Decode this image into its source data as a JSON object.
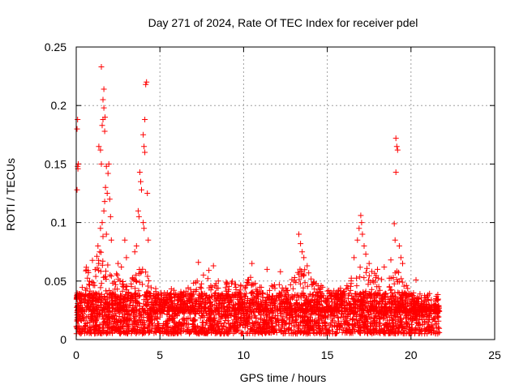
{
  "chart_data": {
    "type": "scatter",
    "title": "Day 271 of 2024, Rate Of TEC Index for receiver pdel",
    "xlabel": "GPS time / hours",
    "ylabel": "ROTI / TECUs",
    "xlim": [
      0,
      25
    ],
    "ylim": [
      0,
      0.25
    ],
    "xticks": [
      0,
      5,
      10,
      15,
      20,
      25
    ],
    "yticks": [
      0,
      0.05,
      0.1,
      0.15,
      0.2,
      0.25
    ],
    "xtick_labels": [
      "0",
      "5",
      "10",
      "15",
      "20",
      "25"
    ],
    "ytick_labels": [
      "0",
      "0.05",
      "0.1",
      "0.15",
      "0.2",
      "0.25"
    ],
    "grid": true,
    "marker": "+",
    "series": [
      {
        "color": "#ff0000",
        "points": [
          [
            0.05,
            0.128
          ],
          [
            0.08,
            0.148
          ],
          [
            0.1,
            0.146
          ],
          [
            0.12,
            0.15
          ],
          [
            0.05,
            0.18
          ],
          [
            0.08,
            0.188
          ],
          [
            1.35,
            0.165
          ],
          [
            1.45,
            0.162
          ],
          [
            1.5,
            0.233
          ],
          [
            1.6,
            0.205
          ],
          [
            1.65,
            0.198
          ],
          [
            1.65,
            0.214
          ],
          [
            1.6,
            0.188
          ],
          [
            1.55,
            0.183
          ],
          [
            1.7,
            0.178
          ],
          [
            1.72,
            0.19
          ],
          [
            1.5,
            0.15
          ],
          [
            1.8,
            0.148
          ],
          [
            1.9,
            0.142
          ],
          [
            1.95,
            0.15
          ],
          [
            1.75,
            0.13
          ],
          [
            1.85,
            0.125
          ],
          [
            1.7,
            0.118
          ],
          [
            1.65,
            0.11
          ],
          [
            2.0,
            0.12
          ],
          [
            2.05,
            0.105
          ],
          [
            1.45,
            0.095
          ],
          [
            1.55,
            0.1
          ],
          [
            1.6,
            0.088
          ],
          [
            1.8,
            0.09
          ],
          [
            1.3,
            0.08
          ],
          [
            1.4,
            0.075
          ],
          [
            2.1,
            0.085
          ],
          [
            3.8,
            0.143
          ],
          [
            3.85,
            0.135
          ],
          [
            3.9,
            0.128
          ],
          [
            4.0,
            0.175
          ],
          [
            4.05,
            0.165
          ],
          [
            4.1,
            0.16
          ],
          [
            4.1,
            0.188
          ],
          [
            4.15,
            0.218
          ],
          [
            4.2,
            0.22
          ],
          [
            4.25,
            0.125
          ],
          [
            3.7,
            0.11
          ],
          [
            3.75,
            0.105
          ],
          [
            4.0,
            0.1
          ],
          [
            4.05,
            0.095
          ],
          [
            3.6,
            0.08
          ],
          [
            4.3,
            0.085
          ],
          [
            3.5,
            0.075
          ],
          [
            2.9,
            0.085
          ],
          [
            3.0,
            0.07
          ],
          [
            2.5,
            0.065
          ],
          [
            2.7,
            0.062
          ],
          [
            8.2,
            0.063
          ],
          [
            7.3,
            0.066
          ],
          [
            10.5,
            0.065
          ],
          [
            11.4,
            0.06
          ],
          [
            12.2,
            0.058
          ],
          [
            13.3,
            0.09
          ],
          [
            13.4,
            0.082
          ],
          [
            13.5,
            0.075
          ],
          [
            13.6,
            0.07
          ],
          [
            13.8,
            0.063
          ],
          [
            16.8,
            0.085
          ],
          [
            16.9,
            0.095
          ],
          [
            17.0,
            0.106
          ],
          [
            17.05,
            0.1
          ],
          [
            17.1,
            0.09
          ],
          [
            17.2,
            0.08
          ],
          [
            17.3,
            0.073
          ],
          [
            16.6,
            0.07
          ],
          [
            17.5,
            0.065
          ],
          [
            18.0,
            0.06
          ],
          [
            18.4,
            0.062
          ],
          [
            19.0,
            0.099
          ],
          [
            19.05,
            0.085
          ],
          [
            19.1,
            0.172
          ],
          [
            19.15,
            0.165
          ],
          [
            19.2,
            0.162
          ],
          [
            19.1,
            0.143
          ],
          [
            19.3,
            0.08
          ],
          [
            19.4,
            0.07
          ],
          [
            19.5,
            0.065
          ],
          [
            18.8,
            0.068
          ],
          [
            20.3,
            0.051
          ]
        ],
        "baseline_band": {
          "x_range": [
            0,
            21.7
          ],
          "y_min": 0.005,
          "y_max": 0.04,
          "dense_upper_envelope": [
            [
              0,
              0.035
            ],
            [
              0.5,
              0.065
            ],
            [
              1.0,
              0.07
            ],
            [
              1.5,
              0.075
            ],
            [
              2.0,
              0.07
            ],
            [
              2.5,
              0.055
            ],
            [
              3.0,
              0.05
            ],
            [
              3.5,
              0.055
            ],
            [
              4.0,
              0.065
            ],
            [
              4.5,
              0.05
            ],
            [
              5.0,
              0.04
            ],
            [
              5.5,
              0.045
            ],
            [
              6.0,
              0.042
            ],
            [
              6.5,
              0.045
            ],
            [
              7.0,
              0.05
            ],
            [
              7.5,
              0.055
            ],
            [
              8.0,
              0.06
            ],
            [
              8.5,
              0.055
            ],
            [
              9.0,
              0.05
            ],
            [
              9.5,
              0.05
            ],
            [
              10.0,
              0.048
            ],
            [
              10.5,
              0.055
            ],
            [
              11.0,
              0.045
            ],
            [
              11.5,
              0.045
            ],
            [
              12.0,
              0.05
            ],
            [
              12.5,
              0.045
            ],
            [
              13.0,
              0.055
            ],
            [
              13.5,
              0.065
            ],
            [
              14.0,
              0.055
            ],
            [
              14.5,
              0.05
            ],
            [
              15.0,
              0.045
            ],
            [
              15.5,
              0.045
            ],
            [
              16.0,
              0.05
            ],
            [
              16.5,
              0.055
            ],
            [
              17.0,
              0.065
            ],
            [
              17.5,
              0.06
            ],
            [
              18.0,
              0.055
            ],
            [
              18.5,
              0.05
            ],
            [
              19.0,
              0.06
            ],
            [
              19.5,
              0.055
            ],
            [
              20.0,
              0.04
            ],
            [
              20.5,
              0.035
            ],
            [
              21.0,
              0.03
            ],
            [
              21.7,
              0.03
            ]
          ]
        }
      }
    ]
  }
}
